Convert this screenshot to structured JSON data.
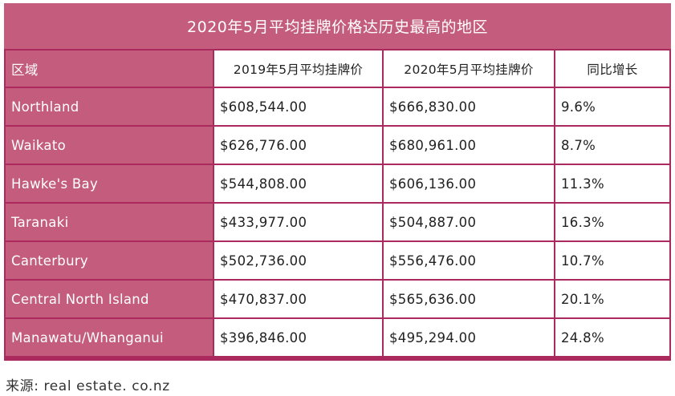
{
  "table": {
    "title": "2020年5月平均挂牌价格达历史最高的地区",
    "headers": [
      "区域",
      "2019年5月平均挂牌价",
      "2020年5月平均挂牌价",
      "同比增长"
    ],
    "rows": [
      [
        "Northland",
        "$608,544.00",
        "$666,830.00",
        "9.6%"
      ],
      [
        "Waikato",
        "$626,776.00",
        "$680,961.00",
        "8.7%"
      ],
      [
        "Hawke's Bay",
        "$544,808.00",
        "$606,136.00",
        "11.3%"
      ],
      [
        "Taranaki",
        "$433,977.00",
        "$504,887.00",
        "16.3%"
      ],
      [
        "Canterbury",
        "$502,736.00",
        "$556,476.00",
        "10.7%"
      ],
      [
        "Central North Island",
        "$470,837.00",
        "$565,636.00",
        "20.1%"
      ],
      [
        "Manawatu/Whanganui",
        "$396,846.00",
        "$495,294.00",
        "24.8%"
      ]
    ]
  },
  "source": "来源: real estate. co.nz",
  "colors": {
    "header_fill": "#c45c7d",
    "grid_line": "#ab2a5e",
    "cell_fill": "#ffffff"
  }
}
